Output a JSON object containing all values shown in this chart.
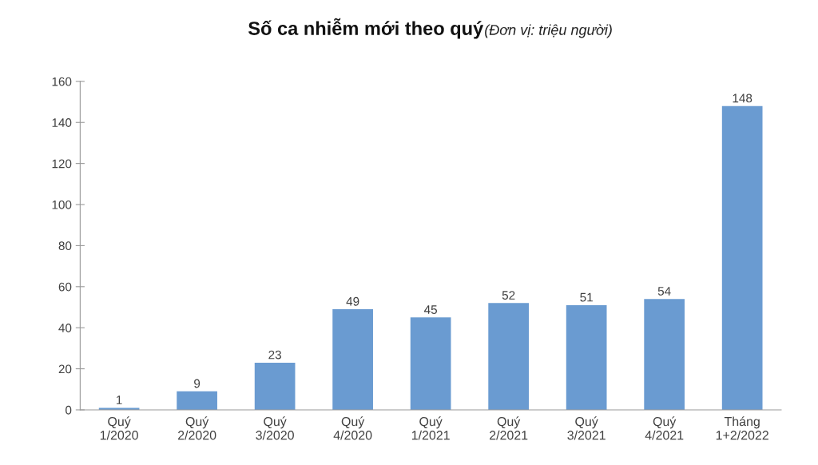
{
  "chart_data": {
    "type": "bar",
    "title": "Số ca nhiễm mới theo quý",
    "subtitle": "(Đơn vị: triệu người)",
    "categories": [
      "Quý\n1/2020",
      "Quý\n2/2020",
      "Quý\n3/2020",
      "Quý\n4/2020",
      "Quý\n1/2021",
      "Quý\n2/2021",
      "Quý\n3/2021",
      "Quý\n4/2021",
      "Tháng\n1+2/2022"
    ],
    "values": [
      1,
      9,
      23,
      49,
      45,
      52,
      51,
      54,
      148
    ],
    "color": "#6a9bd1",
    "ylim": [
      0,
      160
    ],
    "yticks": [
      0,
      20,
      40,
      60,
      80,
      100,
      120,
      140,
      160
    ],
    "grid": false,
    "data_labels": true
  }
}
